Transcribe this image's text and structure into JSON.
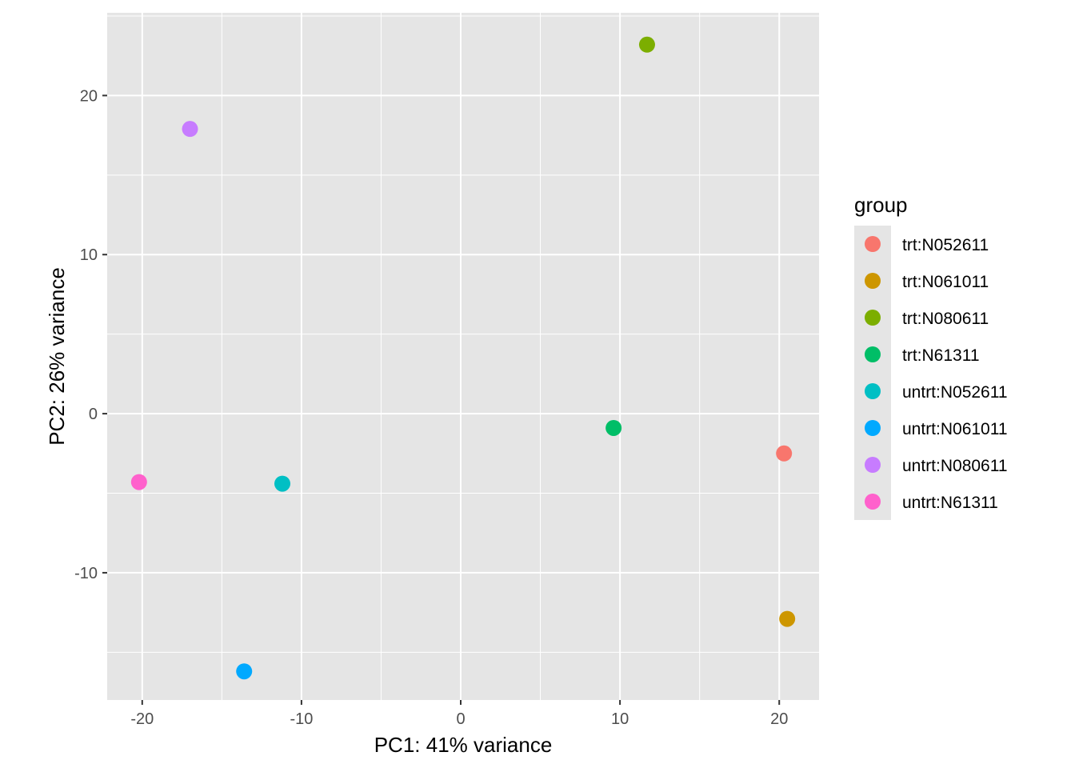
{
  "chart_data": {
    "type": "scatter",
    "title": "",
    "xlabel": "PC1: 41% variance",
    "ylabel": "PC2: 26% variance",
    "xlim": [
      -22.2,
      22.5
    ],
    "ylim": [
      -18.0,
      25.2
    ],
    "x_ticks": [
      -20,
      -10,
      0,
      10,
      20
    ],
    "x_tick_labels": [
      "-20",
      "-10",
      "0",
      "10",
      "20"
    ],
    "y_ticks": [
      -10,
      0,
      10,
      20
    ],
    "y_tick_labels": [
      "-10",
      "0",
      "10",
      "20"
    ],
    "grid": true,
    "panel_background": "#e5e5e5",
    "grid_color": "#ffffff",
    "legend": {
      "title": "group",
      "placement": "right"
    },
    "series": [
      {
        "name": "trt:N052611",
        "color": "#F8766D",
        "x": [
          20.3
        ],
        "y": [
          -2.5
        ]
      },
      {
        "name": "trt:N061011",
        "color": "#CD9600",
        "x": [
          20.5
        ],
        "y": [
          -12.9
        ]
      },
      {
        "name": "trt:N080611",
        "color": "#7CAE00",
        "x": [
          11.7
        ],
        "y": [
          23.2
        ]
      },
      {
        "name": "trt:N61311",
        "color": "#00BE67",
        "x": [
          9.6
        ],
        "y": [
          -0.9
        ]
      },
      {
        "name": "untrt:N052611",
        "color": "#00BFC4",
        "x": [
          -11.2
        ],
        "y": [
          -4.4
        ]
      },
      {
        "name": "untrt:N061011",
        "color": "#00A9FF",
        "x": [
          -13.6
        ],
        "y": [
          -16.2
        ]
      },
      {
        "name": "untrt:N080611",
        "color": "#C77CFF",
        "x": [
          -17.0
        ],
        "y": [
          17.9
        ]
      },
      {
        "name": "untrt:N61311",
        "color": "#FF61CC",
        "x": [
          -20.2
        ],
        "y": [
          -4.3
        ]
      }
    ]
  }
}
